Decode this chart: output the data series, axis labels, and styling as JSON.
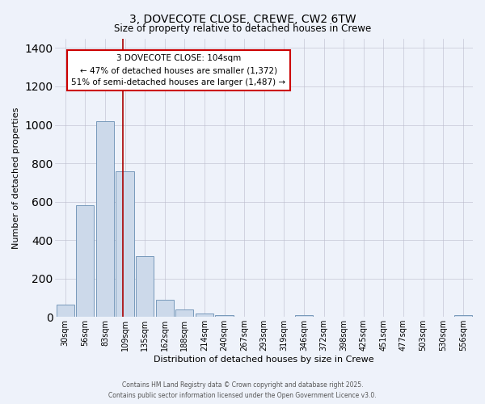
{
  "title": "3, DOVECOTE CLOSE, CREWE, CW2 6TW",
  "subtitle": "Size of property relative to detached houses in Crewe",
  "xlabel": "Distribution of detached houses by size in Crewe",
  "ylabel": "Number of detached properties",
  "bar_labels": [
    "30sqm",
    "56sqm",
    "83sqm",
    "109sqm",
    "135sqm",
    "162sqm",
    "188sqm",
    "214sqm",
    "240sqm",
    "267sqm",
    "293sqm",
    "319sqm",
    "346sqm",
    "372sqm",
    "398sqm",
    "425sqm",
    "451sqm",
    "477sqm",
    "503sqm",
    "530sqm",
    "556sqm"
  ],
  "bar_values": [
    65,
    580,
    1020,
    760,
    315,
    90,
    40,
    20,
    10,
    0,
    0,
    0,
    10,
    0,
    0,
    0,
    0,
    0,
    0,
    0,
    10
  ],
  "bar_color": "#ccd9ea",
  "bar_edge_color": "#7799bb",
  "ylim": [
    0,
    1450
  ],
  "yticks": [
    0,
    200,
    400,
    600,
    800,
    1000,
    1200,
    1400
  ],
  "vline_color": "#aa0000",
  "annotation_title": "3 DOVECOTE CLOSE: 104sqm",
  "annotation_line1": "← 47% of detached houses are smaller (1,372)",
  "annotation_line2": "51% of semi-detached houses are larger (1,487) →",
  "annotation_box_color": "#ffffff",
  "annotation_border_color": "#cc0000",
  "background_color": "#eef2fa",
  "grid_color": "#bbbbcc",
  "footer1": "Contains HM Land Registry data © Crown copyright and database right 2025.",
  "footer2": "Contains public sector information licensed under the Open Government Licence v3.0."
}
